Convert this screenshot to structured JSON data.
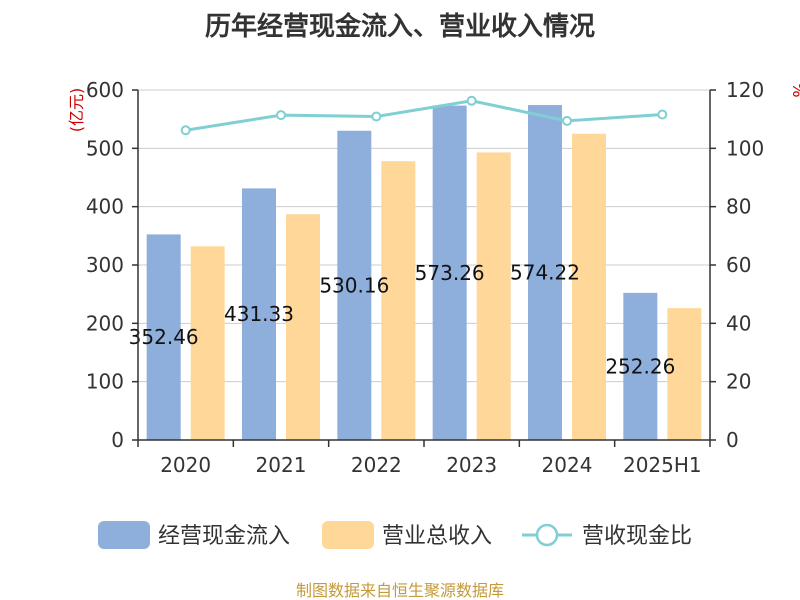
{
  "chart_data": {
    "type": "bar",
    "title": "历年经营现金流入、营业收入情况",
    "categories": [
      "2020",
      "2021",
      "2022",
      "2023",
      "2024",
      "2025H1"
    ],
    "series": [
      {
        "name": "经营现金流入",
        "type": "bar",
        "axis": "left",
        "color": "#8eaedb",
        "values": [
          352.46,
          431.33,
          530.16,
          573.26,
          574.22,
          252.26
        ]
      },
      {
        "name": "营业总收入",
        "type": "bar",
        "axis": "left",
        "color": "#ffd899",
        "values": [
          332,
          387,
          478,
          493,
          525,
          226
        ]
      },
      {
        "name": "营收现金比",
        "type": "line",
        "axis": "right",
        "color": "#7fcfd3",
        "values": [
          106.2,
          111.4,
          110.9,
          116.3,
          109.4,
          111.6
        ]
      }
    ],
    "data_labels": [
      "352.46",
      "431.33",
      "530.16",
      "573.26",
      "574.22",
      "252.26"
    ],
    "y_left": {
      "label": "(亿元)",
      "min": 0,
      "max": 600,
      "ticks": [
        0,
        100,
        200,
        300,
        400,
        500,
        600
      ]
    },
    "y_right": {
      "label": "%",
      "min": 0,
      "max": 120,
      "ticks": [
        0,
        20,
        40,
        60,
        80,
        100,
        120
      ]
    },
    "grid": true,
    "legend_position": "bottom",
    "accent_color": "#cc0000"
  },
  "footer": {
    "source": "制图数据来自恒生聚源数据库",
    "source_color": "#c49a3a"
  }
}
